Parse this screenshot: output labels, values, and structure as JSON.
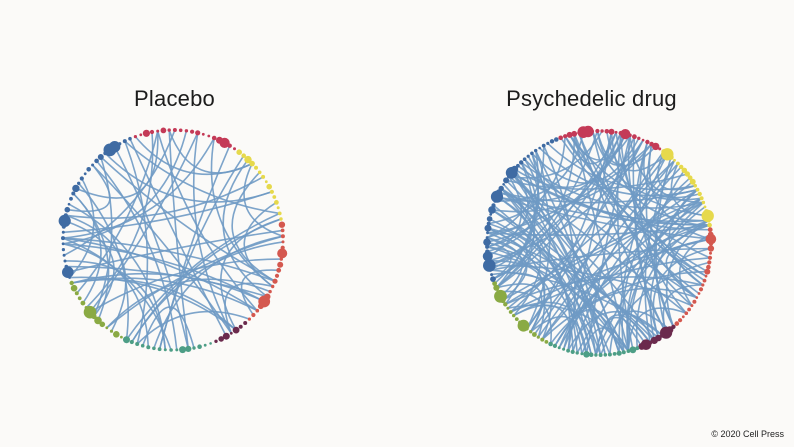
{
  "panels": [
    {
      "title": "Placebo",
      "node_count": 120,
      "edge_count": 62,
      "seed": 11
    },
    {
      "title": "Psychedelic drug",
      "node_count": 150,
      "edge_count": 160,
      "seed": 29
    }
  ],
  "palette": {
    "edge": "#6f9ac4",
    "groups": [
      "#c43a57",
      "#e6d94c",
      "#d4584f",
      "#6b2a4d",
      "#4d9e86",
      "#8aaa44",
      "#3f6ba3",
      "#c43a57"
    ]
  },
  "credit": "© 2020 Cell Press"
}
